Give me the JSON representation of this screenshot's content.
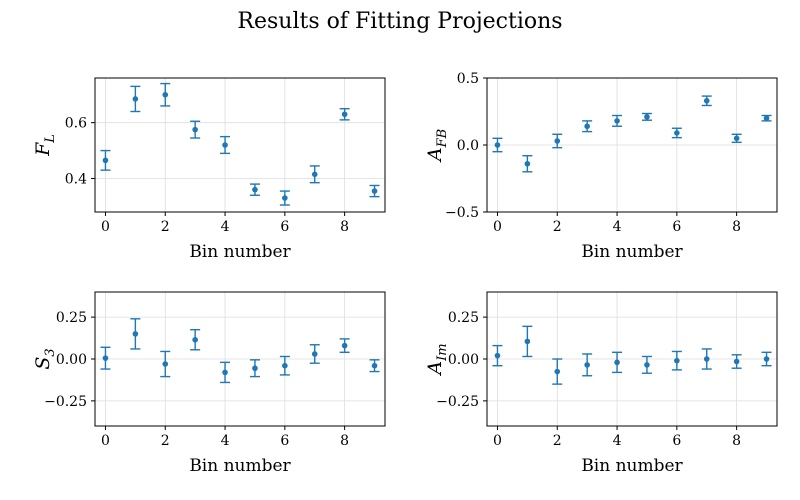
{
  "figure": {
    "title": "Results of Fitting Projections",
    "point_color": "#1f77b4",
    "grid_color": "#dddddd"
  },
  "chart_data": [
    {
      "type": "scatter",
      "error_bars": true,
      "ylabel": "F_L",
      "ylabel_main": "F",
      "ylabel_sub": "L",
      "xlabel": "Bin number",
      "x": [
        0,
        1,
        2,
        3,
        4,
        5,
        6,
        7,
        8,
        9
      ],
      "y": [
        0.465,
        0.685,
        0.7,
        0.575,
        0.52,
        0.36,
        0.33,
        0.415,
        0.63,
        0.355
      ],
      "yerr": [
        0.035,
        0.045,
        0.04,
        0.03,
        0.03,
        0.02,
        0.025,
        0.03,
        0.02,
        0.02
      ],
      "xlim": [
        -0.35,
        9.35
      ],
      "ylim": [
        0.28,
        0.76
      ],
      "xticks": [
        0,
        2,
        4,
        6,
        8
      ],
      "yticks": [
        0.4,
        0.6
      ],
      "ytick_labels": [
        "0.4",
        "0.6"
      ],
      "grid": true
    },
    {
      "type": "scatter",
      "error_bars": true,
      "ylabel": "A_FB",
      "ylabel_main": "A",
      "ylabel_sub": "FB",
      "xlabel": "Bin number",
      "x": [
        0,
        1,
        2,
        3,
        4,
        5,
        6,
        7,
        8,
        9
      ],
      "y": [
        0.0,
        -0.14,
        0.03,
        0.14,
        0.18,
        0.21,
        0.09,
        0.33,
        0.05,
        0.2
      ],
      "yerr": [
        0.05,
        0.06,
        0.05,
        0.04,
        0.04,
        0.025,
        0.035,
        0.035,
        0.03,
        0.02
      ],
      "xlim": [
        -0.35,
        9.35
      ],
      "ylim": [
        -0.5,
        0.5
      ],
      "xticks": [
        0,
        2,
        4,
        6,
        8
      ],
      "yticks": [
        -0.5,
        0.0,
        0.5
      ],
      "ytick_labels": [
        "−0.5",
        "0.0",
        "0.5"
      ],
      "grid": true
    },
    {
      "type": "scatter",
      "error_bars": true,
      "ylabel": "S_3",
      "ylabel_main": "S",
      "ylabel_sub": "3",
      "xlabel": "Bin number",
      "x": [
        0,
        1,
        2,
        3,
        4,
        5,
        6,
        7,
        8,
        9
      ],
      "y": [
        0.005,
        0.15,
        -0.03,
        0.115,
        -0.08,
        -0.055,
        -0.04,
        0.03,
        0.08,
        -0.04
      ],
      "yerr": [
        0.065,
        0.09,
        0.075,
        0.06,
        0.06,
        0.05,
        0.055,
        0.055,
        0.04,
        0.035
      ],
      "xlim": [
        -0.35,
        9.35
      ],
      "ylim": [
        -0.4,
        0.4
      ],
      "xticks": [
        0,
        2,
        4,
        6,
        8
      ],
      "yticks": [
        -0.25,
        0.0,
        0.25
      ],
      "ytick_labels": [
        "−0.25",
        "0.00",
        "0.25"
      ],
      "grid": true
    },
    {
      "type": "scatter",
      "error_bars": true,
      "ylabel": "A_Im",
      "ylabel_main": "A",
      "ylabel_sub": "Im",
      "xlabel": "Bin number",
      "x": [
        0,
        1,
        2,
        3,
        4,
        5,
        6,
        7,
        8,
        9
      ],
      "y": [
        0.02,
        0.105,
        -0.075,
        -0.035,
        -0.02,
        -0.035,
        -0.01,
        0.0,
        -0.015,
        0.0
      ],
      "yerr": [
        0.06,
        0.09,
        0.075,
        0.065,
        0.06,
        0.05,
        0.055,
        0.06,
        0.04,
        0.04
      ],
      "xlim": [
        -0.35,
        9.35
      ],
      "ylim": [
        -0.4,
        0.4
      ],
      "xticks": [
        0,
        2,
        4,
        6,
        8
      ],
      "yticks": [
        -0.25,
        0.0,
        0.25
      ],
      "ytick_labels": [
        "−0.25",
        "0.00",
        "0.25"
      ],
      "grid": true
    }
  ]
}
